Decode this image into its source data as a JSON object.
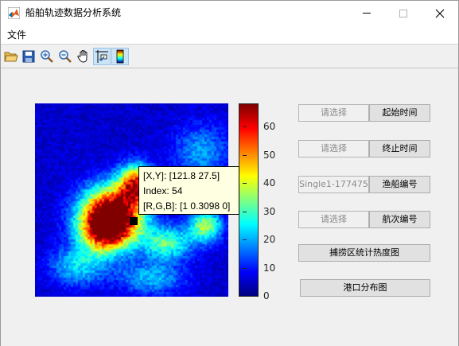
{
  "window": {
    "title": "船舶轨迹数据分析系统",
    "close_glyph": "✕"
  },
  "menu": {
    "items": [
      "文件"
    ]
  },
  "toolbar": {
    "buttons": [
      {
        "name": "open-icon",
        "active": false
      },
      {
        "name": "save-icon",
        "active": false
      },
      {
        "name": "zoom-in-icon",
        "active": false
      },
      {
        "name": "zoom-out-icon",
        "active": false
      },
      {
        "name": "pan-hand-icon",
        "active": false
      },
      {
        "name": "data-cursor-icon",
        "active": true
      },
      {
        "name": "colorbar-icon",
        "active": true
      }
    ]
  },
  "chart_data": {
    "type": "heatmap",
    "title": "",
    "colormap": "jet",
    "clim": [
      0,
      68
    ],
    "colorbar_ticks": [
      0,
      10,
      20,
      30,
      40,
      50,
      60
    ],
    "colorbar_labels": [
      "0",
      "10",
      "20",
      "30",
      "40",
      "50",
      "60"
    ],
    "hotspots": [
      {
        "x": 0.4,
        "y": 0.57,
        "value": 65,
        "sx": 0.11,
        "sy": 0.1
      },
      {
        "x": 0.52,
        "y": 0.42,
        "value": 50,
        "sx": 0.06,
        "sy": 0.07
      },
      {
        "x": 0.36,
        "y": 0.66,
        "value": 42,
        "sx": 0.09,
        "sy": 0.08
      },
      {
        "x": 0.88,
        "y": 0.63,
        "value": 30,
        "sx": 0.06,
        "sy": 0.06
      },
      {
        "x": 0.68,
        "y": 0.72,
        "value": 26,
        "sx": 0.09,
        "sy": 0.06
      },
      {
        "x": 0.86,
        "y": 0.25,
        "value": 14,
        "sx": 0.1,
        "sy": 0.1
      },
      {
        "x": 0.22,
        "y": 0.84,
        "value": 18,
        "sx": 0.1,
        "sy": 0.07
      },
      {
        "x": 0.6,
        "y": 0.9,
        "value": 16,
        "sx": 0.12,
        "sy": 0.06
      }
    ],
    "base_level": 5,
    "datatip": {
      "lines": [
        "[X,Y]: [121.8 27.5]",
        "Index: 54",
        "[R,G,B]: [1 0.3098 0]"
      ]
    }
  },
  "controls": {
    "start_time": {
      "field": "请选择",
      "button": "起始时间"
    },
    "end_time": {
      "field": "请选择",
      "button": "终止时间"
    },
    "ship_id": {
      "field": "Single1-177475",
      "button": "渔船编号"
    },
    "voyage_id": {
      "field": "请选择",
      "button": "航次编号"
    },
    "heatmap_button": "捕捞区统计热度图",
    "port_button": "港口分布图"
  }
}
